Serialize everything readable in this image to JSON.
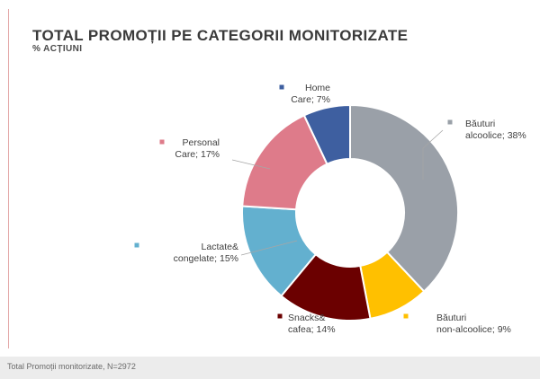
{
  "chart_data": {
    "type": "pie",
    "variant": "donut",
    "title": "TOTAL PROMOȚII PE CATEGORII MONITORIZATE",
    "subtitle": "% ACȚIUNI",
    "unit": "%",
    "slices": [
      {
        "name": "Băuturi alcoolice",
        "value": 38,
        "color": "#9aa0a8",
        "label_lines": [
          "Băuturi",
          "alcoolice; 38%"
        ]
      },
      {
        "name": "Băuturi non-alcoolice",
        "value": 9,
        "color": "#ffc000",
        "label_lines": [
          "Băuturi",
          "non-alcoolice; 9%"
        ]
      },
      {
        "name": "Snacks& cafea",
        "value": 14,
        "color": "#6b0000",
        "label_lines": [
          "Snacks&",
          "cafea; 14%"
        ]
      },
      {
        "name": "Lactate& congelate",
        "value": 15,
        "color": "#63b0cf",
        "label_lines": [
          "Lactate&",
          "congelate; 15%"
        ]
      },
      {
        "name": "Personal Care",
        "value": 17,
        "color": "#de7b8a",
        "label_lines": [
          "Personal",
          "Care; 17%"
        ]
      },
      {
        "name": "Home Care",
        "value": 7,
        "color": "#3e5fa0",
        "label_lines": [
          "Home",
          "Care; 7%"
        ]
      }
    ]
  },
  "footer": {
    "note": "Total Promoții monitorizate, N=2972"
  }
}
